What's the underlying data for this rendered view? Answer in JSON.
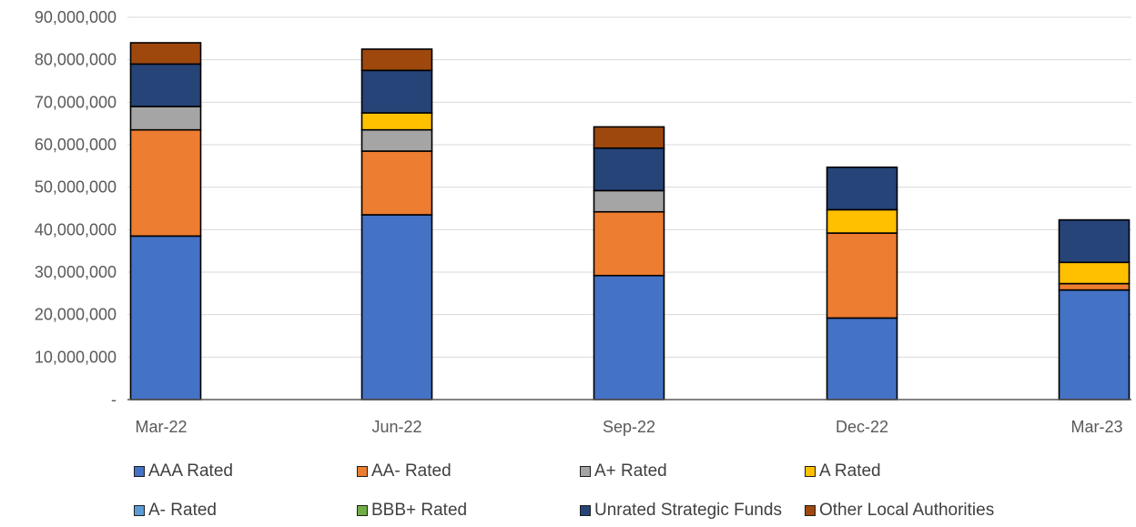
{
  "chart_data": {
    "type": "bar",
    "stacked": true,
    "categories": [
      "Mar-22",
      "Jun-22",
      "Sep-22",
      "Dec-22",
      "Mar-23"
    ],
    "ylim": [
      0,
      90000000
    ],
    "yticks": [
      "-",
      "10,000,000",
      "20,000,000",
      "30,000,000",
      "40,000,000",
      "50,000,000",
      "60,000,000",
      "70,000,000",
      "80,000,000",
      "90,000,000"
    ],
    "grid": true,
    "legend_position": "bottom",
    "series": [
      {
        "name": "AAA Rated",
        "color": "#4472C4",
        "values": [
          38500000,
          43500000,
          29200000,
          19200000,
          25800000
        ]
      },
      {
        "name": "AA- Rated",
        "color": "#ED7D31",
        "values": [
          25000000,
          15000000,
          15000000,
          20000000,
          1500000
        ]
      },
      {
        "name": "A+ Rated",
        "color": "#A5A5A5",
        "values": [
          5500000,
          5000000,
          5000000,
          0,
          0
        ]
      },
      {
        "name": "A Rated",
        "color": "#FFC000",
        "values": [
          0,
          4000000,
          0,
          5500000,
          5000000
        ]
      },
      {
        "name": "A- Rated",
        "color": "#5B9BD5",
        "values": [
          0,
          0,
          0,
          0,
          0
        ]
      },
      {
        "name": "BBB+ Rated",
        "color": "#70AD47",
        "values": [
          0,
          0,
          0,
          0,
          0
        ]
      },
      {
        "name": "Unrated Strategic Funds",
        "color": "#264478",
        "values": [
          10000000,
          10000000,
          10000000,
          10000000,
          10000000
        ]
      },
      {
        "name": "Other Local Authorities",
        "color": "#9E480E",
        "values": [
          5000000,
          5000000,
          5000000,
          0,
          0
        ]
      }
    ]
  }
}
